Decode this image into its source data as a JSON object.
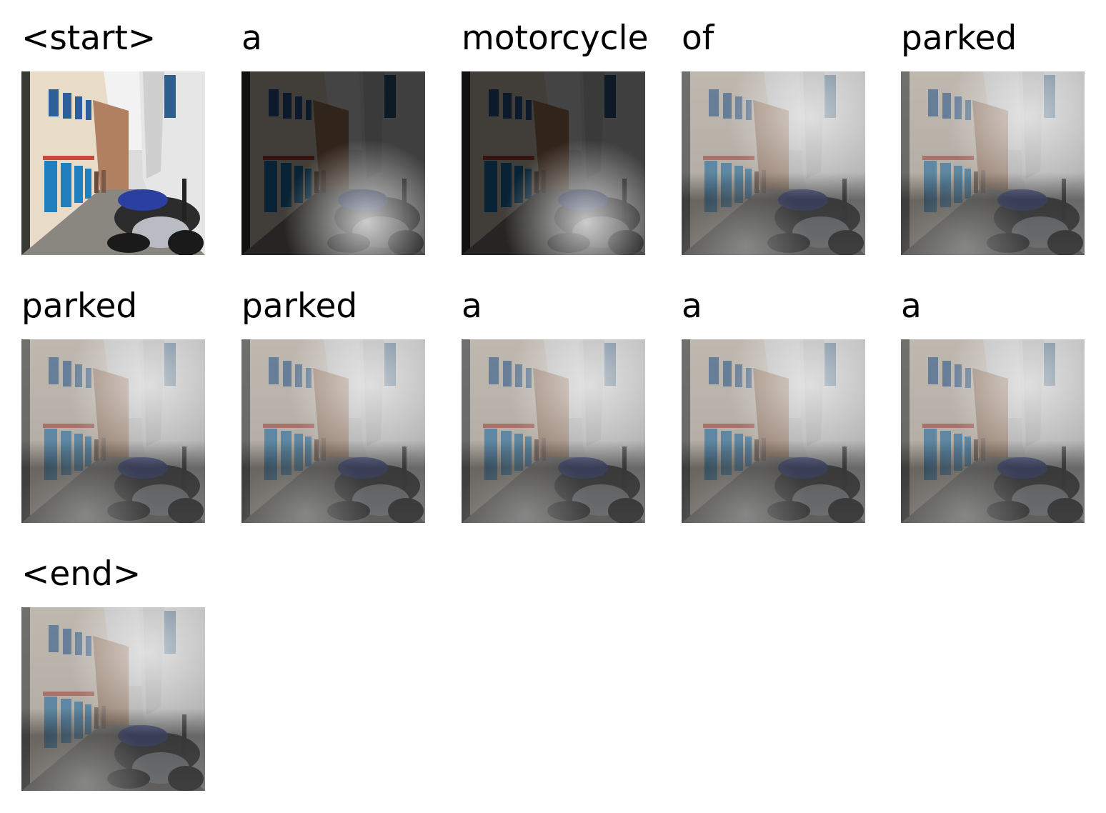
{
  "tokens": [
    {
      "word": "<start>",
      "attention": "none"
    },
    {
      "word": "a",
      "attention": "bottom-right"
    },
    {
      "word": "motorcycle",
      "attention": "bottom-right"
    },
    {
      "word": "of",
      "attention": "diffuse"
    },
    {
      "word": "parked",
      "attention": "diffuse"
    },
    {
      "word": "parked",
      "attention": "diffuse"
    },
    {
      "word": "parked",
      "attention": "diffuse"
    },
    {
      "word": "a",
      "attention": "diffuse"
    },
    {
      "word": "a",
      "attention": "diffuse"
    },
    {
      "word": "a",
      "attention": "diffuse"
    },
    {
      "word": "<end>",
      "attention": "diffuse"
    }
  ],
  "colors": {
    "wall_left": "#e8dcc8",
    "door_blue": "#1f7fbf",
    "wall_right": "#e6e6e6",
    "street": "#8a8780",
    "bike_blue": "#2a3fa0"
  }
}
